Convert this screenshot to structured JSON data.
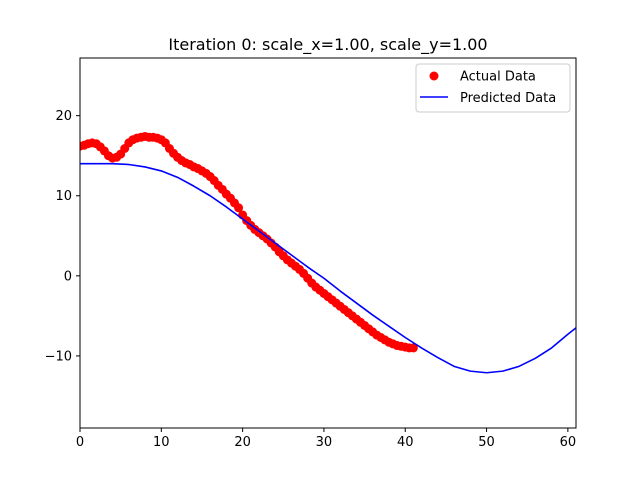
{
  "chart_data": {
    "type": "line",
    "title": "Iteration 0: scale_x=1.00, scale_y=1.00",
    "xlabel": "",
    "ylabel": "",
    "xlim": [
      0,
      61
    ],
    "ylim": [
      -19,
      27.2
    ],
    "xticks": [
      0,
      10,
      20,
      30,
      40,
      50,
      60
    ],
    "yticks": [
      -10,
      0,
      10,
      20
    ],
    "ytick_labels": [
      "−10",
      "0",
      "10",
      "20"
    ],
    "grid": false,
    "legend_position": "top-right",
    "colors": {
      "actual": "#ff0000",
      "predicted": "#0000ff",
      "axes": "#000000"
    },
    "series": [
      {
        "name": "Actual Data",
        "style": "markers",
        "x": [
          0,
          0.5,
          1,
          1.5,
          2,
          2.5,
          3,
          3.5,
          4,
          4.5,
          5,
          5.5,
          6,
          6.5,
          7,
          7.5,
          8,
          8.5,
          9,
          9.5,
          10,
          10.5,
          11,
          11.5,
          12,
          12.5,
          13,
          13.5,
          14,
          14.5,
          15,
          15.5,
          16,
          16.5,
          17,
          17.5,
          18,
          18.5,
          19,
          19.5,
          20,
          20.5,
          21,
          21.5,
          22,
          22.5,
          23,
          23.5,
          24,
          24.5,
          25,
          25.5,
          26,
          26.5,
          27,
          27.5,
          28,
          28.5,
          29,
          29.5,
          30,
          30.5,
          31,
          31.5,
          32,
          32.5,
          33,
          33.5,
          34,
          34.5,
          35,
          35.5,
          36,
          36.5,
          37,
          37.5,
          38,
          38.5,
          39,
          39.5,
          40,
          40.5,
          41
        ],
        "y": [
          16.2,
          16.3,
          16.5,
          16.6,
          16.5,
          16.1,
          15.6,
          15.0,
          14.7,
          14.8,
          15.2,
          15.9,
          16.6,
          17.0,
          17.2,
          17.3,
          17.4,
          17.3,
          17.3,
          17.2,
          17.0,
          16.6,
          15.9,
          15.3,
          14.8,
          14.4,
          14.1,
          13.9,
          13.6,
          13.4,
          13.1,
          12.8,
          12.4,
          11.9,
          11.3,
          10.8,
          10.2,
          9.7,
          9.1,
          8.5,
          7.6,
          6.9,
          6.3,
          5.8,
          5.4,
          5.0,
          4.6,
          4.1,
          3.6,
          3.0,
          2.5,
          2.0,
          1.6,
          1.2,
          0.8,
          0.3,
          -0.3,
          -0.9,
          -1.4,
          -1.8,
          -2.2,
          -2.6,
          -3.0,
          -3.4,
          -3.8,
          -4.2,
          -4.6,
          -5.0,
          -5.4,
          -5.8,
          -6.2,
          -6.6,
          -7.0,
          -7.4,
          -7.7,
          -8.0,
          -8.3,
          -8.5,
          -8.7,
          -8.8,
          -8.9,
          -9.0,
          -9.0
        ]
      },
      {
        "name": "Predicted Data",
        "style": "line",
        "x": [
          0,
          2,
          4,
          6,
          8,
          10,
          12,
          14,
          16,
          18,
          20,
          22,
          24,
          26,
          28,
          30,
          32,
          34,
          36,
          38,
          40,
          42,
          44,
          46,
          48,
          50,
          52,
          54,
          56,
          58,
          60,
          61
        ],
        "y": [
          14.0,
          14.0,
          14.0,
          13.9,
          13.6,
          13.1,
          12.3,
          11.2,
          10.0,
          8.6,
          7.1,
          5.6,
          4.1,
          2.6,
          1.1,
          -0.3,
          -1.9,
          -3.4,
          -4.9,
          -6.3,
          -7.7,
          -9.0,
          -10.2,
          -11.3,
          -11.9,
          -12.1,
          -11.9,
          -11.3,
          -10.3,
          -9.0,
          -7.3,
          -6.5
        ]
      }
    ]
  }
}
